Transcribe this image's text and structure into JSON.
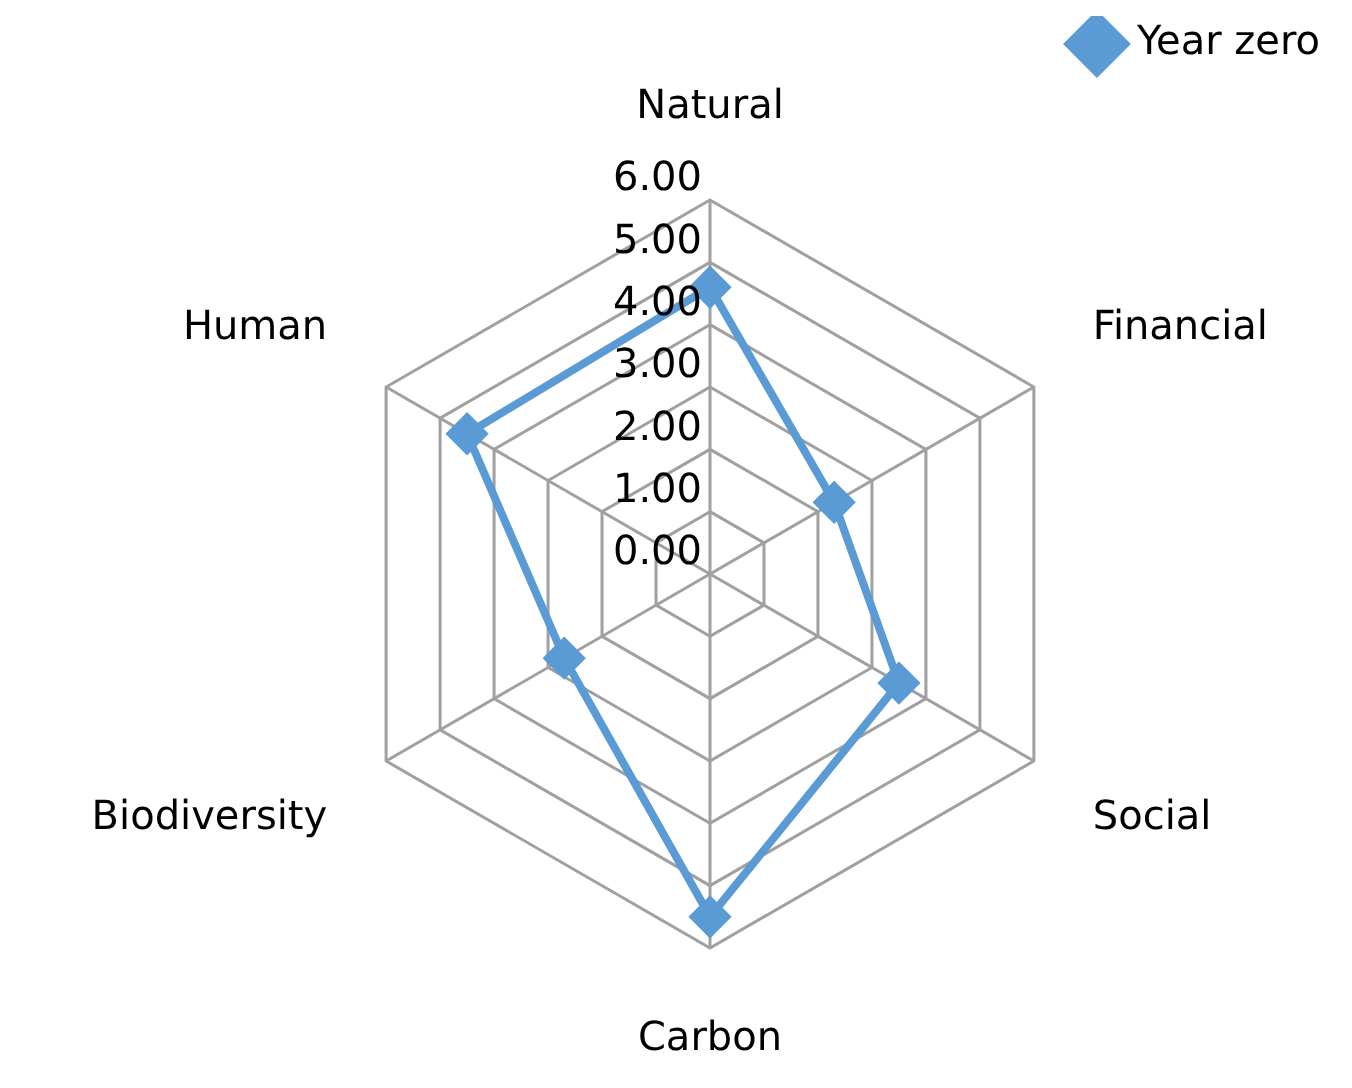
{
  "chart_data": {
    "type": "radar",
    "categories": [
      "Natural",
      "Financial",
      "Social",
      "Carbon",
      "Biodiversity",
      "Human"
    ],
    "series": [
      {
        "name": "Year zero",
        "color": "#5b9bd5",
        "values": [
          4.6,
          2.3,
          3.5,
          5.5,
          2.7,
          4.5
        ]
      }
    ],
    "ylim": [
      0,
      6
    ],
    "yticks": [
      {
        "value": 0,
        "label": "0.00"
      },
      {
        "value": 1,
        "label": "1.00"
      },
      {
        "value": 2,
        "label": "2.00"
      },
      {
        "value": 3,
        "label": "3.00"
      },
      {
        "value": 4,
        "label": "4.00"
      },
      {
        "value": 5,
        "label": "5.00"
      },
      {
        "value": 6,
        "label": "6.00"
      }
    ],
    "grid": true,
    "legend": "top right",
    "marker": "diamond",
    "line_style": "solid"
  }
}
